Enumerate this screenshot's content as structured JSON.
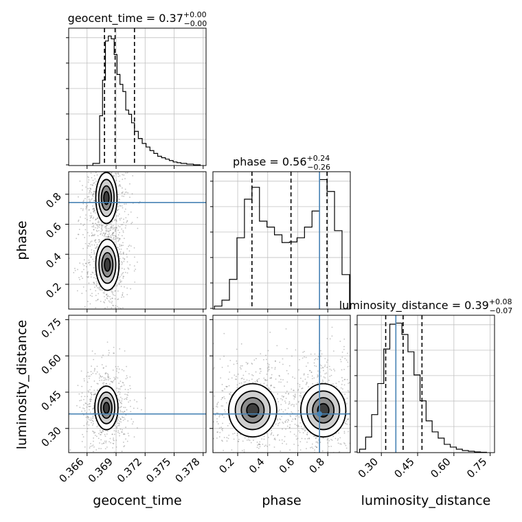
{
  "chart_data": {
    "type": "corner",
    "parameters": [
      "geocent_time",
      "phase",
      "luminosity_distance"
    ],
    "truths": {
      "phase": 0.745,
      "luminosity_distance": 0.36
    },
    "colors": {
      "truth": "#4682b4",
      "hist": "#000000",
      "density": "#000000",
      "grid": "#c0c0c0",
      "points": "#777777"
    },
    "titles": {
      "geocent_time": {
        "name": "geocent_time",
        "median": "0.37",
        "plus": "+0.00",
        "minus": "−0.00"
      },
      "phase": {
        "name": "phase",
        "median": "0.56",
        "plus": "+0.24",
        "minus": "−0.26"
      },
      "luminosity_distance": {
        "name": "luminosity_distance",
        "median": "0.39",
        "plus": "+0.08",
        "minus": "−0.07"
      }
    },
    "axis_labels": {
      "geocent_time": "geocent_time",
      "phase": "phase",
      "luminosity_distance": "luminosity_distance"
    },
    "axes": {
      "geocent_time": {
        "range": [
          0.3641,
          0.3783
        ],
        "ticks": [
          0.366,
          0.369,
          0.372,
          0.375,
          0.378
        ],
        "tick_labels": [
          "0.366",
          "0.369",
          "0.372",
          "0.375",
          "0.378"
        ]
      },
      "phase": {
        "range": [
          0.035,
          0.95
        ],
        "ticks": [
          0.2,
          0.4,
          0.6,
          0.8
        ],
        "tick_labels": [
          "0.2",
          "0.4",
          "0.6",
          "0.8"
        ]
      },
      "luminosity_distance": {
        "range": [
          0.2,
          0.768
        ],
        "ticks": [
          0.3,
          0.45,
          0.6,
          0.75
        ],
        "tick_labels": [
          "0.30",
          "0.45",
          "0.60",
          "0.75"
        ]
      }
    },
    "quantiles": {
      "geocent_time": [
        0.3678,
        0.3689,
        0.3709
      ],
      "phase": [
        0.295,
        0.555,
        0.795
      ],
      "luminosity_distance": [
        0.318,
        0.39,
        0.468
      ]
    },
    "histograms": {
      "geocent_time": {
        "edges": [
          0.3659,
          0.3666,
          0.3673,
          0.3676,
          0.3679,
          0.3682,
          0.3685,
          0.3688,
          0.3691,
          0.3694,
          0.3697,
          0.37,
          0.3703,
          0.3706,
          0.3709,
          0.3713,
          0.3717,
          0.3721,
          0.3725,
          0.3729,
          0.3733,
          0.3737,
          0.3741,
          0.3745,
          0.3749,
          0.3753,
          0.3757,
          0.3763,
          0.377,
          0.3777
        ],
        "counts": [
          0,
          3,
          70,
          120,
          175,
          182,
          178,
          156,
          128,
          114,
          104,
          78,
          72,
          60,
          48,
          38,
          31,
          26,
          21,
          17,
          13,
          11,
          9,
          7,
          5,
          4,
          3,
          2,
          1
        ]
      },
      "phase": {
        "edges": [
          0.045,
          0.095,
          0.145,
          0.195,
          0.245,
          0.295,
          0.345,
          0.395,
          0.445,
          0.495,
          0.545,
          0.595,
          0.645,
          0.695,
          0.745,
          0.795,
          0.845,
          0.895,
          0.945
        ],
        "counts": [
          5,
          15,
          50,
          120,
          185,
          205,
          148,
          138,
          125,
          112,
          113,
          120,
          138,
          165,
          218,
          198,
          132,
          58
        ]
      },
      "luminosity_distance": {
        "edges": [
          0.21,
          0.235,
          0.26,
          0.285,
          0.31,
          0.335,
          0.36,
          0.385,
          0.41,
          0.435,
          0.46,
          0.485,
          0.51,
          0.535,
          0.56,
          0.585,
          0.61,
          0.635,
          0.66,
          0.685,
          0.71,
          0.735
        ],
        "counts": [
          10,
          45,
          110,
          200,
          300,
          372,
          375,
          342,
          292,
          225,
          150,
          92,
          60,
          42,
          24,
          16,
          10,
          6,
          4,
          2,
          1
        ]
      }
    },
    "density_modes": {
      "phase_vs_geocent_time": [
        {
          "x": 0.368,
          "y": 0.775,
          "sx": 0.00055,
          "sy": 0.085,
          "weight": 1.0
        },
        {
          "x": 0.3681,
          "y": 0.33,
          "sx": 0.0006,
          "sy": 0.085,
          "weight": 0.9
        }
      ],
      "luminosity_distance_vs_geocent_time": [
        {
          "x": 0.368,
          "y": 0.385,
          "sx": 0.0006,
          "sy": 0.045,
          "weight": 1.0
        }
      ],
      "luminosity_distance_vs_phase": [
        {
          "x": 0.3,
          "y": 0.375,
          "sx": 0.08,
          "sy": 0.055,
          "weight": 1.0
        },
        {
          "x": 0.77,
          "y": 0.375,
          "sx": 0.075,
          "sy": 0.055,
          "weight": 1.0
        }
      ]
    }
  }
}
